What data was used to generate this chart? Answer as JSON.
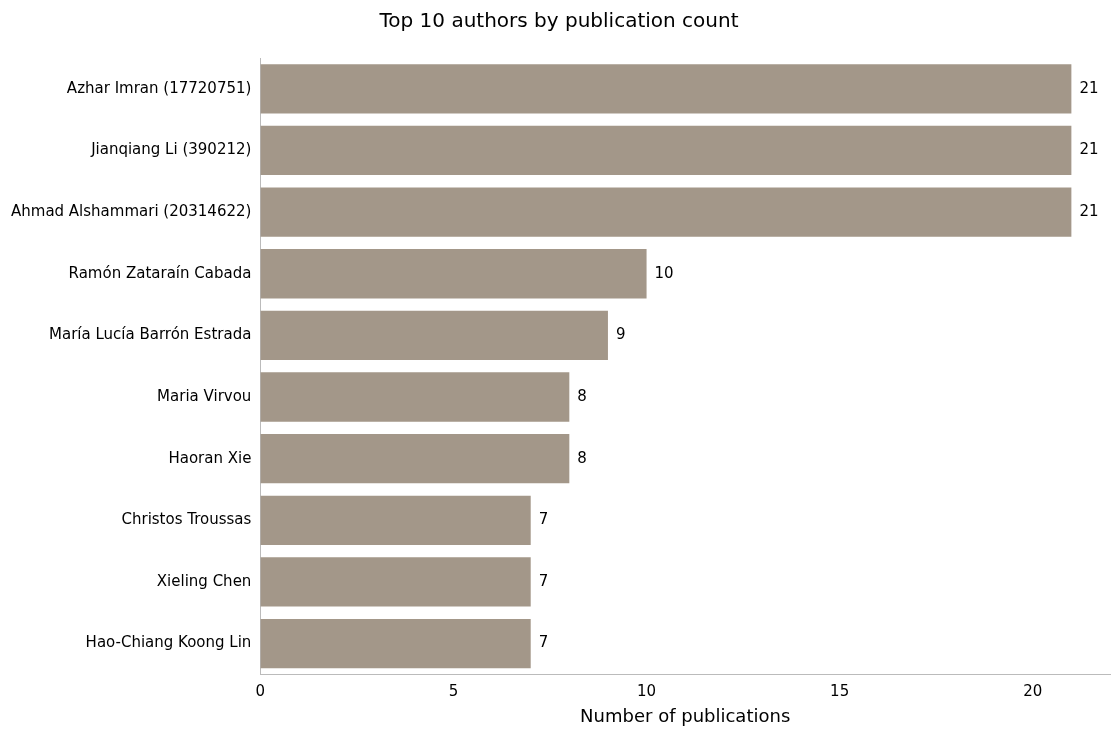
{
  "chart_data": {
    "type": "bar",
    "orientation": "horizontal",
    "title": "Top 10 authors by publication count",
    "xlabel": "Number of publications",
    "categories": [
      "Azhar Imran (17720751)",
      "Jianqiang Li (390212)",
      "Ahmad Alshammari (20314622)",
      "Ramón Zataraín Cabada",
      "María Lucía Barrón Estrada",
      "Maria Virvou",
      "Haoran Xie",
      "Christos Troussas",
      "Xieling Chen",
      "Hao-Chiang Koong Lin"
    ],
    "values": [
      21,
      21,
      21,
      10,
      9,
      8,
      8,
      7,
      7,
      7
    ],
    "color": "#a39789",
    "xlim": [
      0,
      22
    ],
    "xticks": [
      0,
      5,
      10,
      15,
      20
    ],
    "data_labels": true,
    "grid": false,
    "legend": false
  }
}
